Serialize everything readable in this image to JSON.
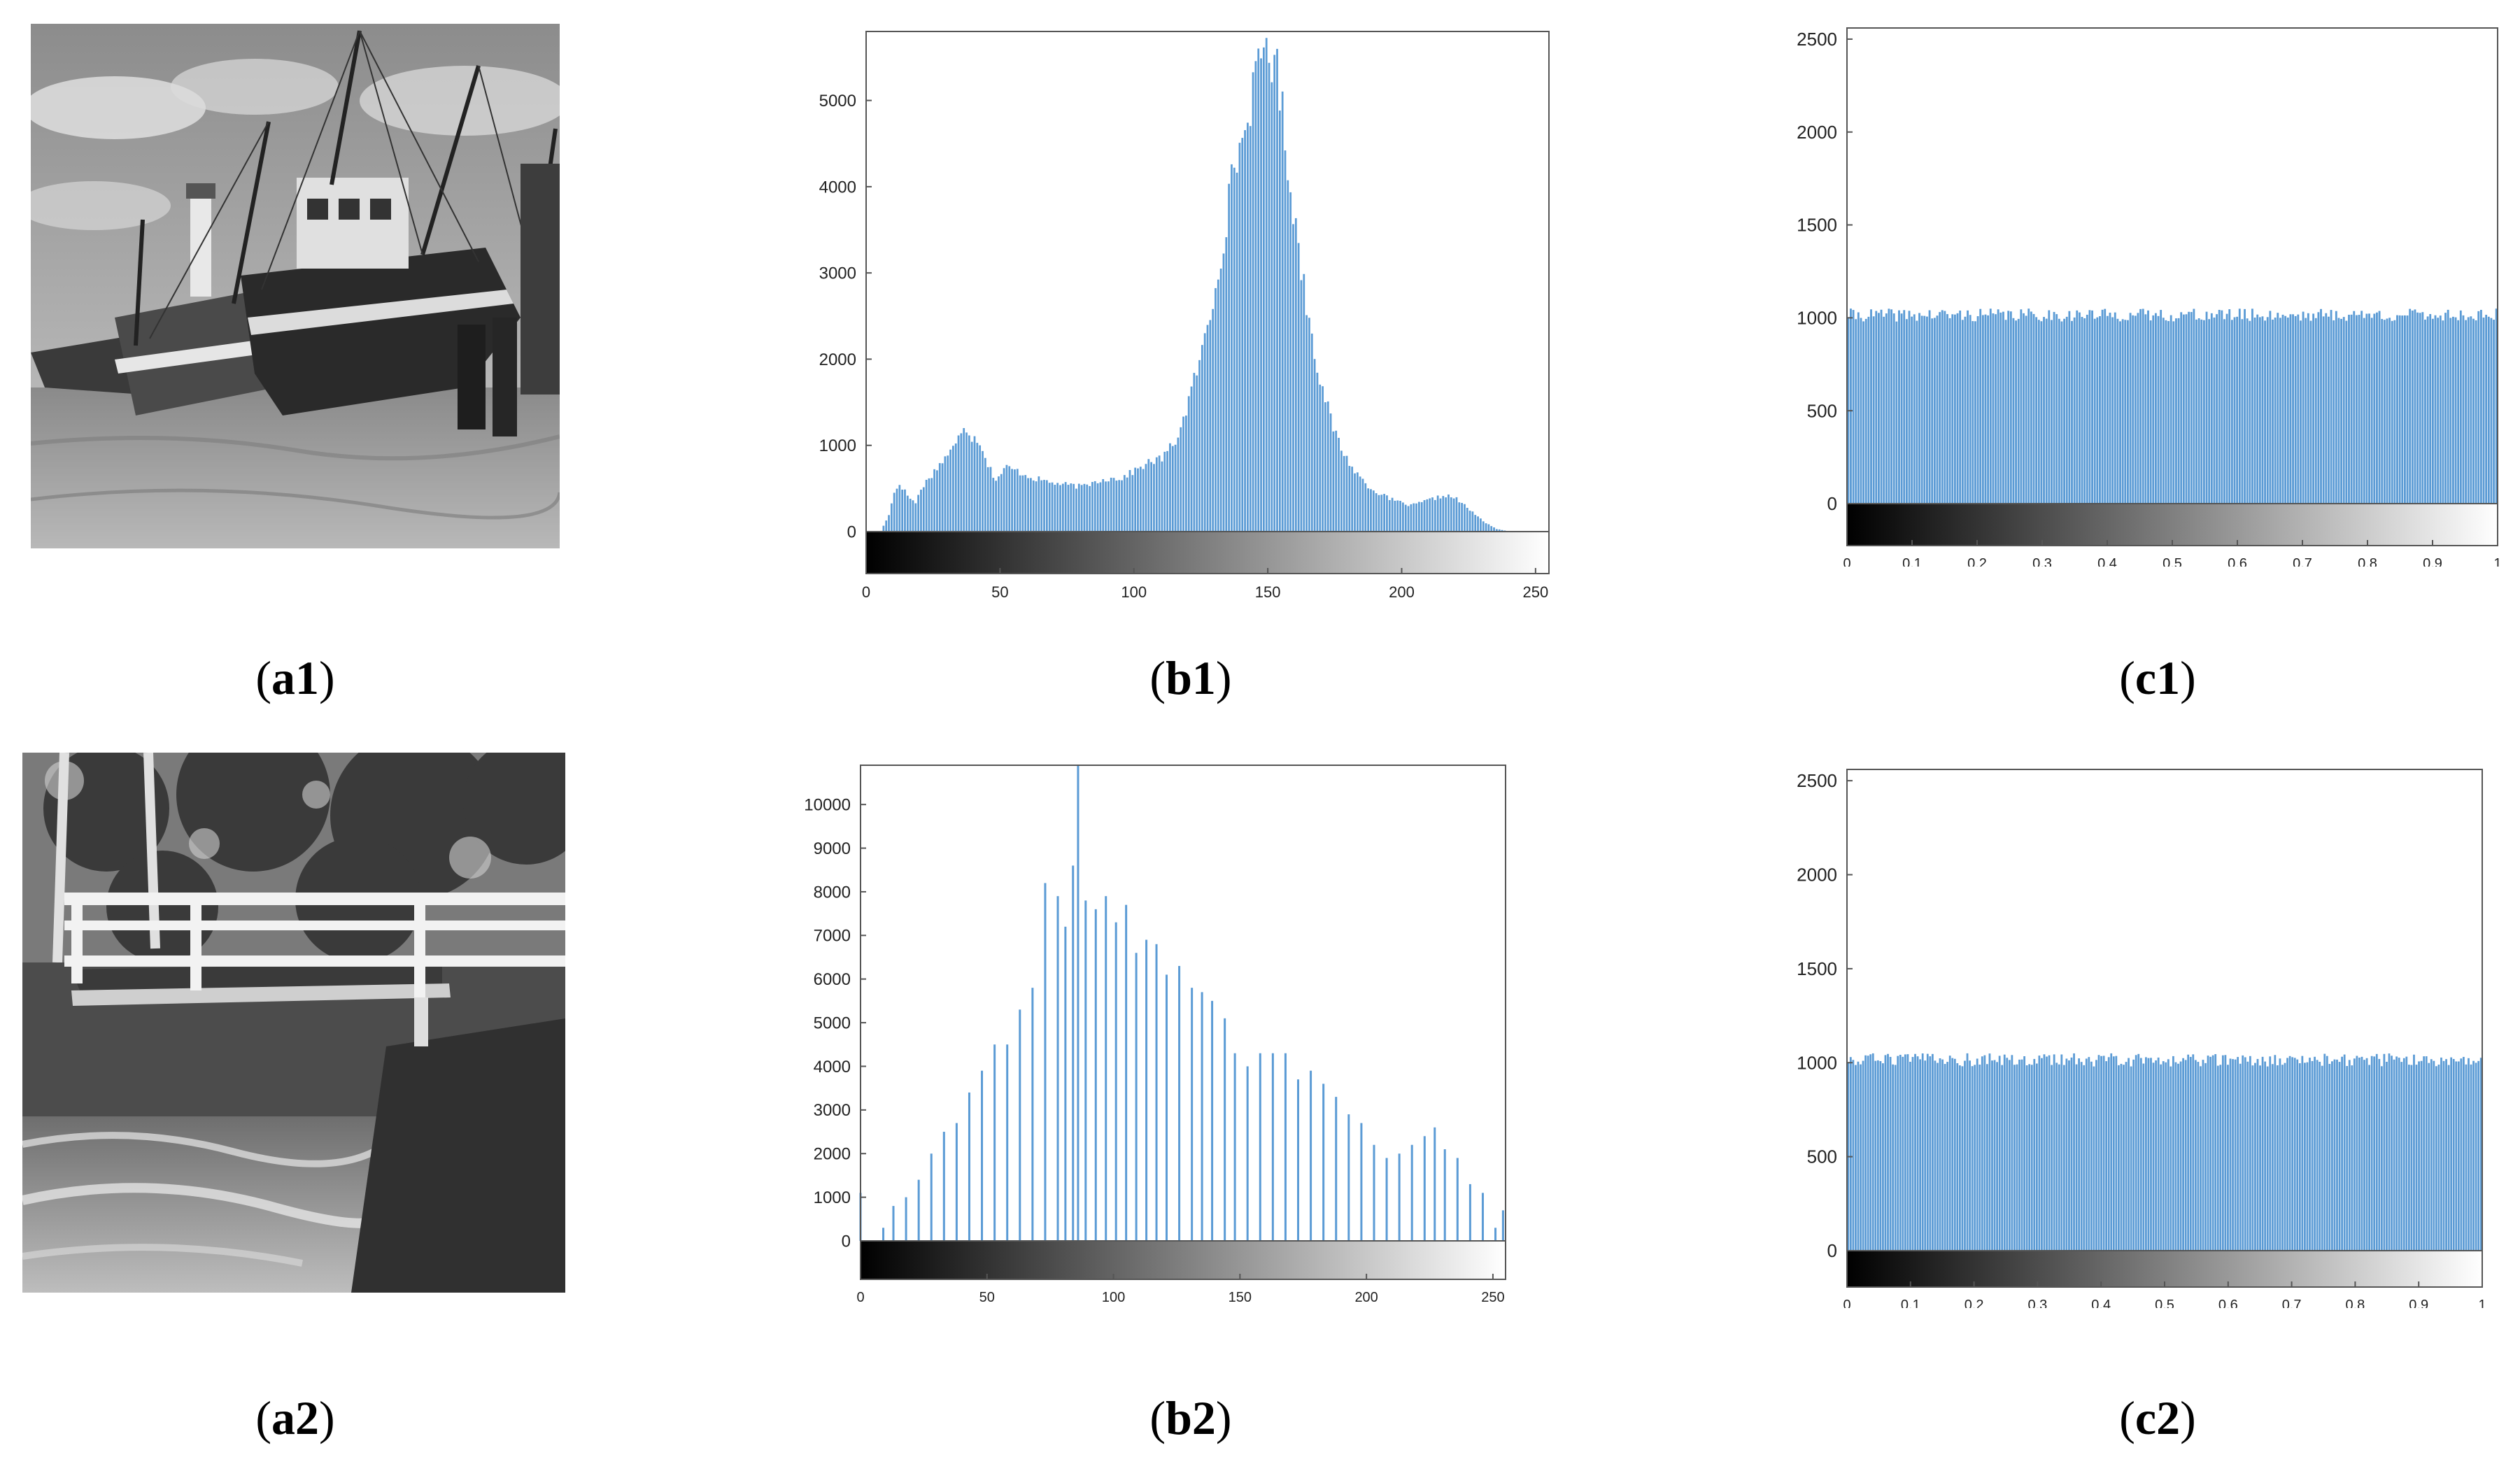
{
  "figure": {
    "captions": [
      {
        "id": "a1",
        "paren_open": "(",
        "label": "a1",
        "paren_close": ")"
      },
      {
        "id": "b1",
        "paren_open": "(",
        "label": "b1",
        "paren_close": ")"
      },
      {
        "id": "c1",
        "paren_open": "(",
        "label": "c1",
        "paren_close": ")"
      },
      {
        "id": "a2",
        "paren_open": "(",
        "label": "a2",
        "paren_close": ")"
      },
      {
        "id": "b2",
        "paren_open": "(",
        "label": "b2",
        "paren_close": ")"
      },
      {
        "id": "c2",
        "paren_open": "(",
        "label": "c2",
        "paren_close": ")"
      }
    ],
    "bar_color": "#5b9bd5",
    "images": [
      {
        "id": "a1",
        "subject": "grayscale photo of fishing boats beached at low tide"
      },
      {
        "id": "a2",
        "subject": "grayscale photo of a wooden footbridge over a stream in woods"
      }
    ]
  },
  "chart_data": [
    {
      "id": "b1",
      "type": "bar",
      "title": "",
      "xlabel": "",
      "ylabel": "",
      "xlim": [
        0,
        255
      ],
      "ylim": [
        0,
        5800
      ],
      "xticks": [
        0,
        50,
        100,
        150,
        200,
        250
      ],
      "yticks": [
        0,
        1000,
        2000,
        3000,
        4000,
        5000
      ],
      "colorbar": "gray",
      "profile": [
        [
          0,
          0
        ],
        [
          5,
          0
        ],
        [
          8,
          200
        ],
        [
          10,
          450
        ],
        [
          12,
          560
        ],
        [
          15,
          420
        ],
        [
          18,
          330
        ],
        [
          20,
          500
        ],
        [
          25,
          700
        ],
        [
          28,
          820
        ],
        [
          30,
          900
        ],
        [
          33,
          1000
        ],
        [
          36,
          1250
        ],
        [
          39,
          1100
        ],
        [
          42,
          1050
        ],
        [
          45,
          780
        ],
        [
          48,
          600
        ],
        [
          52,
          750
        ],
        [
          56,
          700
        ],
        [
          62,
          620
        ],
        [
          70,
          560
        ],
        [
          80,
          520
        ],
        [
          88,
          610
        ],
        [
          95,
          620
        ],
        [
          100,
          710
        ],
        [
          105,
          800
        ],
        [
          110,
          850
        ],
        [
          115,
          1050
        ],
        [
          118,
          1300
        ],
        [
          122,
          1750
        ],
        [
          125,
          2100
        ],
        [
          128,
          2500
        ],
        [
          131,
          3050
        ],
        [
          134,
          3600
        ],
        [
          137,
          4300
        ],
        [
          140,
          4500
        ],
        [
          143,
          5000
        ],
        [
          146,
          5300
        ],
        [
          148,
          5700
        ],
        [
          150,
          5500
        ],
        [
          152,
          5550
        ],
        [
          155,
          4850
        ],
        [
          158,
          4000
        ],
        [
          161,
          3300
        ],
        [
          164,
          2650
        ],
        [
          167,
          2100
        ],
        [
          170,
          1650
        ],
        [
          174,
          1200
        ],
        [
          178,
          900
        ],
        [
          182,
          700
        ],
        [
          188,
          500
        ],
        [
          195,
          380
        ],
        [
          203,
          300
        ],
        [
          210,
          370
        ],
        [
          216,
          420
        ],
        [
          220,
          380
        ],
        [
          225,
          250
        ],
        [
          230,
          120
        ],
        [
          235,
          30
        ],
        [
          240,
          0
        ],
        [
          255,
          0
        ]
      ],
      "jitter": 0.06,
      "seed": 17
    },
    {
      "id": "c1",
      "type": "bar",
      "title": "",
      "xlabel": "",
      "ylabel": "",
      "xlim": [
        0,
        1
      ],
      "ylim": [
        0,
        2560
      ],
      "xticks": [
        0,
        0.1,
        0.2,
        0.3,
        0.4,
        0.5,
        0.6,
        0.7,
        0.8,
        0.9,
        1
      ],
      "yticks": [
        0,
        500,
        1000,
        1500,
        2000,
        2500
      ],
      "colorbar": "gray",
      "bins": 256,
      "mean": 1015,
      "spread": 70,
      "seed": 41
    },
    {
      "id": "b2",
      "type": "bar",
      "title": "",
      "xlabel": "",
      "ylabel": "",
      "xlim": [
        0,
        255
      ],
      "ylim": [
        0,
        10900
      ],
      "xticks": [
        0,
        50,
        100,
        150,
        200,
        250
      ],
      "yticks": [
        0,
        1000,
        2000,
        3000,
        4000,
        5000,
        6000,
        7000,
        8000,
        9000,
        10000
      ],
      "colorbar": "gray",
      "spikes": [
        [
          0,
          1100
        ],
        [
          9,
          300
        ],
        [
          13,
          800
        ],
        [
          18,
          1000
        ],
        [
          23,
          1400
        ],
        [
          28,
          2000
        ],
        [
          33,
          2500
        ],
        [
          38,
          2700
        ],
        [
          43,
          3400
        ],
        [
          48,
          3900
        ],
        [
          53,
          4500
        ],
        [
          58,
          4500
        ],
        [
          63,
          5300
        ],
        [
          68,
          5800
        ],
        [
          73,
          8200
        ],
        [
          78,
          7900
        ],
        [
          81,
          7200
        ],
        [
          84,
          8600
        ],
        [
          86,
          10900
        ],
        [
          89,
          7800
        ],
        [
          93,
          7600
        ],
        [
          97,
          7900
        ],
        [
          101,
          7300
        ],
        [
          105,
          7700
        ],
        [
          109,
          6600
        ],
        [
          113,
          6900
        ],
        [
          117,
          6800
        ],
        [
          121,
          6100
        ],
        [
          126,
          6300
        ],
        [
          131,
          5800
        ],
        [
          135,
          5700
        ],
        [
          139,
          5500
        ],
        [
          144,
          5100
        ],
        [
          148,
          4300
        ],
        [
          153,
          4000
        ],
        [
          158,
          4300
        ],
        [
          163,
          4300
        ],
        [
          168,
          4300
        ],
        [
          173,
          3700
        ],
        [
          178,
          3900
        ],
        [
          183,
          3600
        ],
        [
          188,
          3300
        ],
        [
          193,
          2900
        ],
        [
          198,
          2700
        ],
        [
          203,
          2200
        ],
        [
          208,
          1900
        ],
        [
          213,
          2000
        ],
        [
          218,
          2200
        ],
        [
          223,
          2400
        ],
        [
          227,
          2600
        ],
        [
          231,
          2100
        ],
        [
          236,
          1900
        ],
        [
          241,
          1300
        ],
        [
          246,
          1100
        ],
        [
          251,
          300
        ],
        [
          254,
          700
        ]
      ]
    },
    {
      "id": "c2",
      "type": "bar",
      "title": "",
      "xlabel": "",
      "ylabel": "",
      "xlim": [
        0,
        1
      ],
      "ylim": [
        0,
        2560
      ],
      "xticks": [
        0,
        0.1,
        0.2,
        0.3,
        0.4,
        0.5,
        0.6,
        0.7,
        0.8,
        0.9,
        1
      ],
      "yticks": [
        0,
        500,
        1000,
        1500,
        2000,
        2500
      ],
      "colorbar": "gray",
      "bins": 256,
      "mean": 1015,
      "spread": 70,
      "seed": 93
    }
  ]
}
